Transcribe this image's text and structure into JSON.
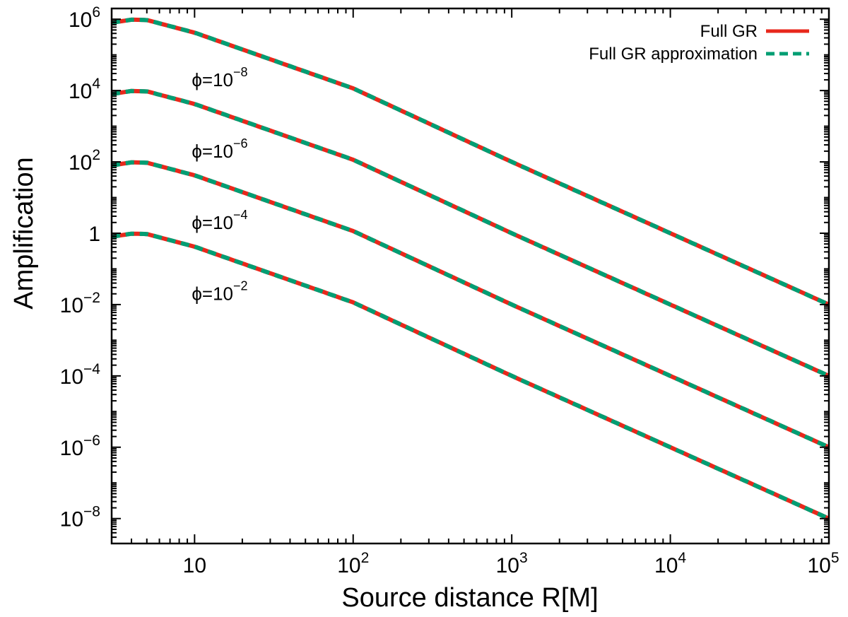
{
  "chart_data": {
    "type": "line",
    "title": "",
    "xlabel": "Source distance R[M]",
    "ylabel": "Amplification",
    "xscale": "log",
    "yscale": "log",
    "xlim": [
      3,
      100000
    ],
    "ylim": [
      2e-09,
      2000000
    ],
    "x_ticks": [
      {
        "value": 10,
        "base": "10",
        "exp": ""
      },
      {
        "value": 100,
        "base": "10",
        "exp": "2"
      },
      {
        "value": 1000,
        "base": "10",
        "exp": "3"
      },
      {
        "value": 10000,
        "base": "10",
        "exp": "4"
      },
      {
        "value": 100000,
        "base": "10",
        "exp": "5"
      }
    ],
    "y_ticks": [
      {
        "value": 1e-08,
        "base": "10",
        "exp": "−8"
      },
      {
        "value": 1e-06,
        "base": "10",
        "exp": "−6"
      },
      {
        "value": 0.0001,
        "base": "10",
        "exp": "−4"
      },
      {
        "value": 0.01,
        "base": "10",
        "exp": "−2"
      },
      {
        "value": 1,
        "base": "1",
        "exp": ""
      },
      {
        "value": 100,
        "base": "10",
        "exp": "2"
      },
      {
        "value": 10000,
        "base": "10",
        "exp": "4"
      },
      {
        "value": 1000000,
        "base": "10",
        "exp": "6"
      }
    ],
    "legend": {
      "placement": "top-right",
      "entries": [
        {
          "label": "Full GR",
          "color": "#e8281c",
          "style": "solid"
        },
        {
          "label": "Full GR approximation",
          "color": "#009e73",
          "style": "dashed"
        }
      ]
    },
    "series": [
      {
        "phi_label": "ϕ=10",
        "phi_exp": "−8",
        "label_at": [
          10,
          20000
        ],
        "x": [
          3,
          4,
          5,
          10,
          100,
          1000,
          10000,
          100000
        ],
        "values": [
          800000,
          970000,
          950000,
          420000,
          11500,
          100,
          1,
          0.01
        ]
      },
      {
        "phi_label": "ϕ=10",
        "phi_exp": "−6",
        "label_at": [
          10,
          200
        ],
        "x": [
          3,
          4,
          5,
          10,
          100,
          1000,
          10000,
          100000
        ],
        "values": [
          8000,
          9700,
          9500,
          4200,
          115,
          1,
          0.01,
          0.0001
        ]
      },
      {
        "phi_label": "ϕ=10",
        "phi_exp": "−4",
        "label_at": [
          10,
          2
        ],
        "x": [
          3,
          4,
          5,
          10,
          100,
          1000,
          10000,
          100000
        ],
        "values": [
          80,
          97,
          95,
          42,
          1.15,
          0.01,
          0.0001,
          1e-06
        ]
      },
      {
        "phi_label": "ϕ=10",
        "phi_exp": "−2",
        "label_at": [
          10,
          0.02
        ],
        "x": [
          3,
          4,
          5,
          10,
          100,
          1000,
          10000,
          100000
        ],
        "values": [
          0.8,
          0.97,
          0.95,
          0.42,
          0.0115,
          0.0001,
          1e-06,
          1e-08
        ]
      }
    ]
  }
}
